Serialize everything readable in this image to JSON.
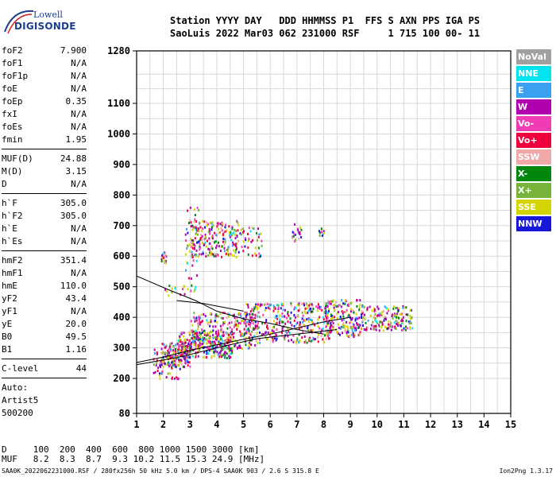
{
  "logo": {
    "line1": "Lowell",
    "line2": "DIGISONDE"
  },
  "header": {
    "line1": "Station YYYY DAY   DDD HHMMSS P1  FFS S AXN PPS IGA PS",
    "line2": "SaoLuis 2022 Mar03 062 231000 RSF     1 715 100 00- 11"
  },
  "params": {
    "group1": [
      {
        "label": "foF2",
        "value": "7.900"
      },
      {
        "label": "foF1",
        "value": "N/A"
      },
      {
        "label": "foF1p",
        "value": "N/A"
      },
      {
        "label": "foE",
        "value": "N/A"
      },
      {
        "label": "foEp",
        "value": "0.35"
      },
      {
        "label": "fxI",
        "value": "N/A"
      },
      {
        "label": "foEs",
        "value": "N/A"
      },
      {
        "label": "fmin",
        "value": "1.95"
      }
    ],
    "group2": [
      {
        "label": "MUF(D)",
        "value": "24.88"
      },
      {
        "label": "M(D)",
        "value": "3.15"
      },
      {
        "label": "D",
        "value": "N/A"
      }
    ],
    "group3": [
      {
        "label": "h`F",
        "value": "305.0"
      },
      {
        "label": "h`F2",
        "value": "305.0"
      },
      {
        "label": "h`E",
        "value": "N/A"
      },
      {
        "label": "h`Es",
        "value": "N/A"
      }
    ],
    "group4": [
      {
        "label": "hmF2",
        "value": "351.4"
      },
      {
        "label": "hmF1",
        "value": "N/A"
      },
      {
        "label": "hmE",
        "value": "110.0"
      },
      {
        "label": "yF2",
        "value": "43.4"
      },
      {
        "label": "yF1",
        "value": "N/A"
      },
      {
        "label": "yE",
        "value": "20.0"
      },
      {
        "label": "B0",
        "value": "49.5"
      },
      {
        "label": "B1",
        "value": "1.16"
      }
    ],
    "clevel": {
      "label": "C-level",
      "value": "44"
    },
    "auto": [
      "Auto:",
      "Artist5",
      "500200"
    ]
  },
  "legend": [
    {
      "label": "NoVal",
      "color": "#a0a0a0"
    },
    {
      "label": "NNE",
      "color": "#00e4f0"
    },
    {
      "label": "E",
      "color": "#3aa0f0"
    },
    {
      "label": "W",
      "color": "#b000b0"
    },
    {
      "label": "Vo-",
      "color": "#f03cb4"
    },
    {
      "label": "Vo+",
      "color": "#f0003c"
    },
    {
      "label": "SSW",
      "color": "#f0a8a8"
    },
    {
      "label": "X-",
      "color": "#00880e"
    },
    {
      "label": "X+",
      "color": "#78b43c"
    },
    {
      "label": "SSE",
      "color": "#d4d400"
    },
    {
      "label": "NNW",
      "color": "#1818d8"
    }
  ],
  "muf_table": {
    "d_label": "D",
    "d_values": "100  200  400  600  800 1000 1500 3000 [km]",
    "muf_label": "MUF",
    "muf_values": "8.2  8.3  8.7  9.3 10.2 11.5 15.3 24.9 [MHz]"
  },
  "footer": {
    "left": "SAA0K_2022062231000.RSF / 280fx256h 50 kHz 5.0 km / DPS-4 SAA0K 903 / 2.6 S 315.8 E",
    "right": "Ion2Png 1.3.17"
  },
  "chart_data": {
    "type": "scatter",
    "x_ticks": [
      1,
      2,
      3,
      4,
      5,
      6,
      7,
      8,
      9,
      10,
      11,
      12,
      13,
      14,
      15
    ],
    "y_ticks": [
      80,
      200,
      300,
      400,
      500,
      600,
      700,
      800,
      900,
      1000,
      1100,
      1280
    ],
    "xlim": [
      1,
      15
    ],
    "ylim": [
      80,
      1280
    ],
    "grid": true,
    "clusters": [
      {
        "x": [
          1.9,
          3.0
        ],
        "y": [
          240,
          320
        ],
        "n": 160
      },
      {
        "x": [
          2.5,
          4.6
        ],
        "y": [
          270,
          360
        ],
        "n": 260
      },
      {
        "x": [
          3.0,
          5.5
        ],
        "y": [
          300,
          420
        ],
        "n": 260
      },
      {
        "x": [
          5.0,
          8.2
        ],
        "y": [
          320,
          450
        ],
        "n": 320
      },
      {
        "x": [
          8.0,
          9.5
        ],
        "y": [
          340,
          460
        ],
        "n": 200
      },
      {
        "x": [
          9.5,
          11.3
        ],
        "y": [
          360,
          440
        ],
        "n": 150
      },
      {
        "x": [
          1.6,
          2.6
        ],
        "y": [
          200,
          300
        ],
        "n": 60
      },
      {
        "x": [
          3.0,
          4.8
        ],
        "y": [
          600,
          720
        ],
        "n": 200
      },
      {
        "x": [
          4.8,
          5.7
        ],
        "y": [
          600,
          700
        ],
        "n": 40
      },
      {
        "x": [
          6.8,
          7.2
        ],
        "y": [
          650,
          710
        ],
        "n": 20
      },
      {
        "x": [
          7.8,
          8.0
        ],
        "y": [
          670,
          700
        ],
        "n": 10
      },
      {
        "x": [
          2.8,
          3.3
        ],
        "y": [
          520,
          780
        ],
        "n": 40
      },
      {
        "x": [
          1.9,
          2.1
        ],
        "y": [
          580,
          620
        ],
        "n": 20
      },
      {
        "x": [
          2.0,
          3.2
        ],
        "y": [
          470,
          510
        ],
        "n": 20
      }
    ],
    "lines": [
      [
        [
          1.0,
          535
        ],
        [
          2.2,
          490
        ],
        [
          3.2,
          455
        ],
        [
          4.0,
          420
        ],
        [
          5.0,
          395
        ],
        [
          6.0,
          380
        ],
        [
          7.0,
          360
        ],
        [
          8.0,
          345
        ]
      ],
      [
        [
          1.0,
          252
        ],
        [
          2.0,
          270
        ],
        [
          3.0,
          292
        ],
        [
          4.0,
          310
        ],
        [
          5.0,
          328
        ],
        [
          6.0,
          345
        ],
        [
          7.0,
          365
        ],
        [
          8.0,
          385
        ],
        [
          9.0,
          400
        ]
      ],
      [
        [
          1.0,
          245
        ],
        [
          2.5,
          268
        ],
        [
          4.0,
          300
        ],
        [
          5.5,
          330
        ],
        [
          7.0,
          345
        ],
        [
          8.5,
          360
        ]
      ],
      [
        [
          2.5,
          455
        ],
        [
          3.5,
          445
        ],
        [
          5.0,
          420
        ]
      ]
    ]
  }
}
